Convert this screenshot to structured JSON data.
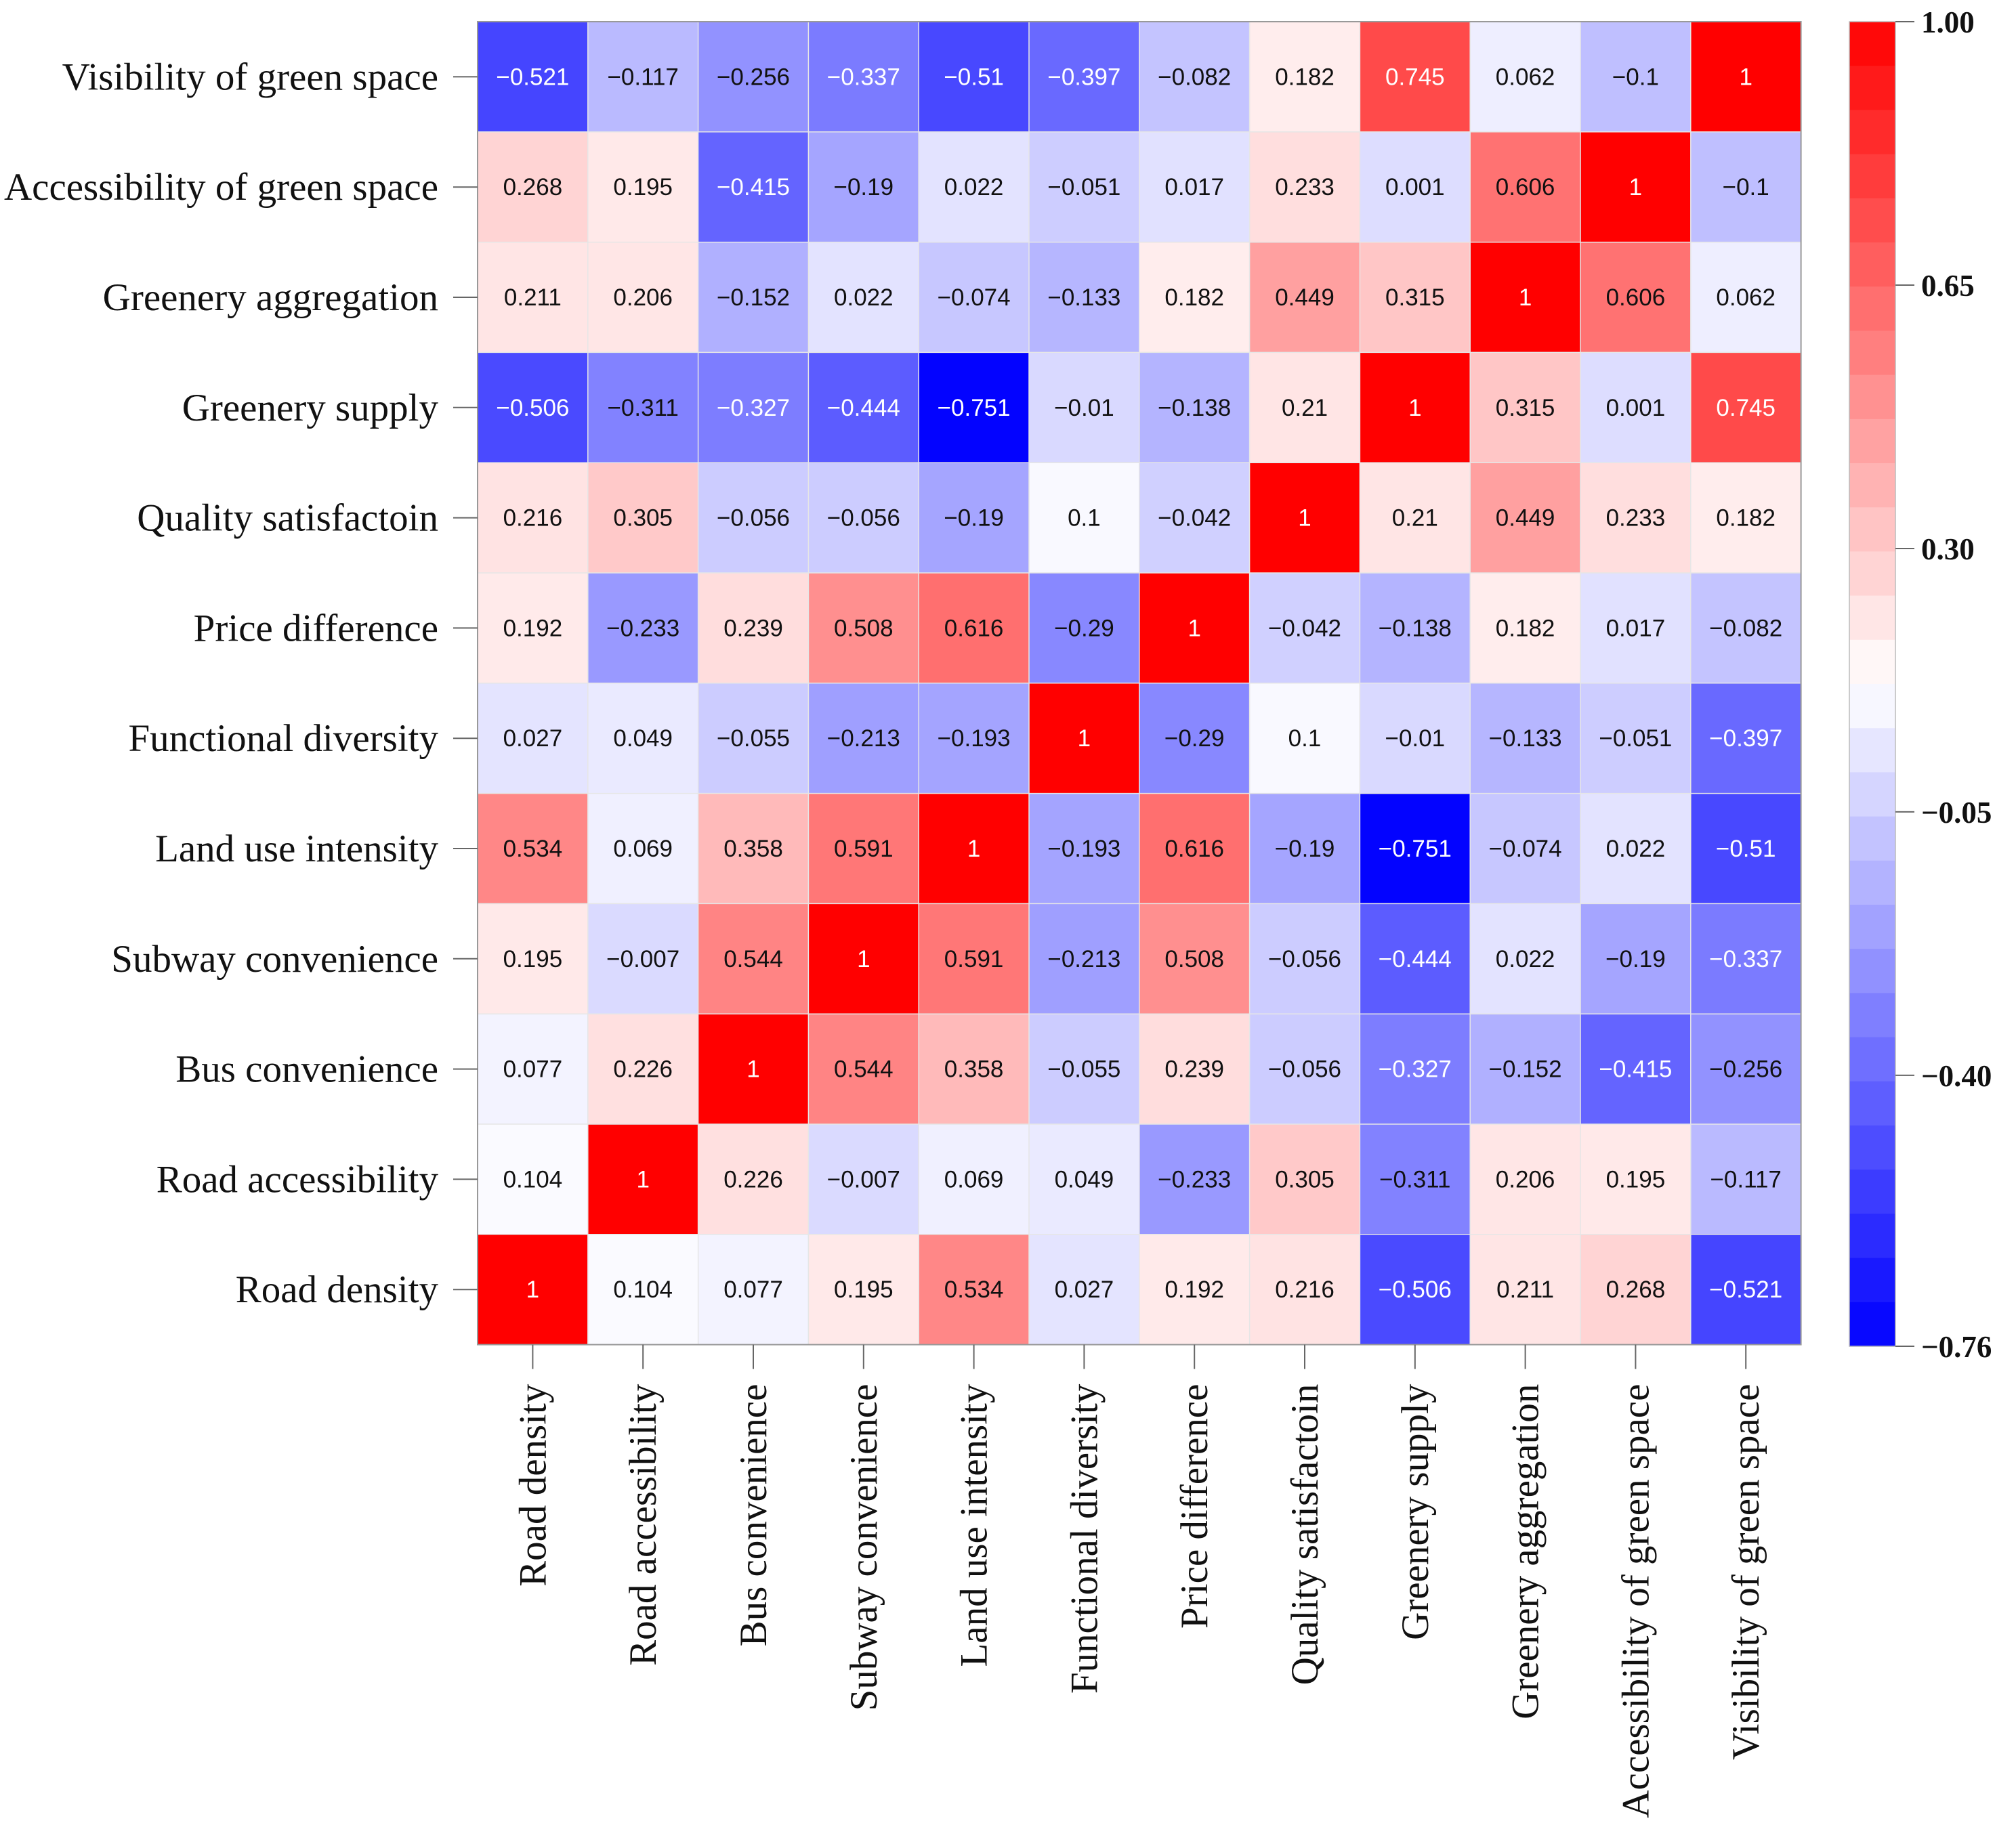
{
  "chart_data": {
    "type": "heatmap",
    "title": "",
    "rows": [
      "Visibility of green space",
      "Accessibility of green space",
      "Greenery aggregation",
      "Greenery supply",
      "Quality satisfactoin",
      "Price difference",
      "Functional diversity",
      "Land use intensity",
      "Subway convenience",
      "Bus convenience",
      "Road accessibility",
      "Road density"
    ],
    "columns": [
      "Road density",
      "Road accessibility",
      "Bus convenience",
      "Subway convenience",
      "Land use intensity",
      "Functional diversity",
      "Price difference",
      "Quality satisfactoin",
      "Greenery supply",
      "Greenery aggregation",
      "Accessibility of green space",
      "Visibility of green space"
    ],
    "values": [
      [
        -0.521,
        -0.117,
        -0.256,
        -0.337,
        -0.51,
        -0.397,
        -0.082,
        0.182,
        0.745,
        0.062,
        -0.1,
        1
      ],
      [
        0.268,
        0.195,
        -0.415,
        -0.19,
        0.022,
        -0.051,
        0.017,
        0.233,
        0.001,
        0.606,
        1,
        -0.1
      ],
      [
        0.211,
        0.206,
        -0.152,
        0.022,
        -0.074,
        -0.133,
        0.182,
        0.449,
        0.315,
        1,
        0.606,
        0.062
      ],
      [
        -0.506,
        -0.311,
        -0.327,
        -0.444,
        -0.751,
        -0.01,
        -0.138,
        0.21,
        1,
        0.315,
        0.001,
        0.745
      ],
      [
        0.216,
        0.305,
        -0.056,
        -0.056,
        -0.19,
        0.1,
        -0.042,
        1,
        0.21,
        0.449,
        0.233,
        0.182
      ],
      [
        0.192,
        -0.233,
        0.239,
        0.508,
        0.616,
        -0.29,
        1,
        -0.042,
        -0.138,
        0.182,
        0.017,
        -0.082
      ],
      [
        0.027,
        0.049,
        -0.055,
        -0.213,
        -0.193,
        1,
        -0.29,
        0.1,
        -0.01,
        -0.133,
        -0.051,
        -0.397
      ],
      [
        0.534,
        0.069,
        0.358,
        0.591,
        1,
        -0.193,
        0.616,
        -0.19,
        -0.751,
        -0.074,
        0.022,
        -0.51
      ],
      [
        0.195,
        -0.007,
        0.544,
        1,
        0.591,
        -0.213,
        0.508,
        -0.056,
        -0.444,
        0.022,
        -0.19,
        -0.337
      ],
      [
        0.077,
        0.226,
        1,
        0.544,
        0.358,
        -0.055,
        0.239,
        -0.056,
        -0.327,
        -0.152,
        -0.415,
        -0.256
      ],
      [
        0.104,
        1,
        0.226,
        -0.007,
        0.069,
        0.049,
        -0.233,
        0.305,
        -0.311,
        0.206,
        0.195,
        -0.117
      ],
      [
        1,
        0.104,
        0.077,
        0.195,
        0.534,
        0.027,
        0.192,
        0.216,
        -0.506,
        0.211,
        0.268,
        -0.521
      ]
    ],
    "colorbar": {
      "min": -0.76,
      "max": 1.0,
      "mid": 0.12,
      "ticks": [
        1.0,
        0.65,
        0.3,
        -0.05,
        -0.4,
        -0.76
      ],
      "tick_labels": [
        "1.00",
        "0.65",
        "0.30",
        "−0.05",
        "−0.40",
        "−0.76"
      ],
      "steps": 30,
      "low_color": "#0000ff",
      "mid_color": "#ffffff",
      "high_color": "#ff0000"
    },
    "xlabel": "",
    "ylabel": ""
  }
}
